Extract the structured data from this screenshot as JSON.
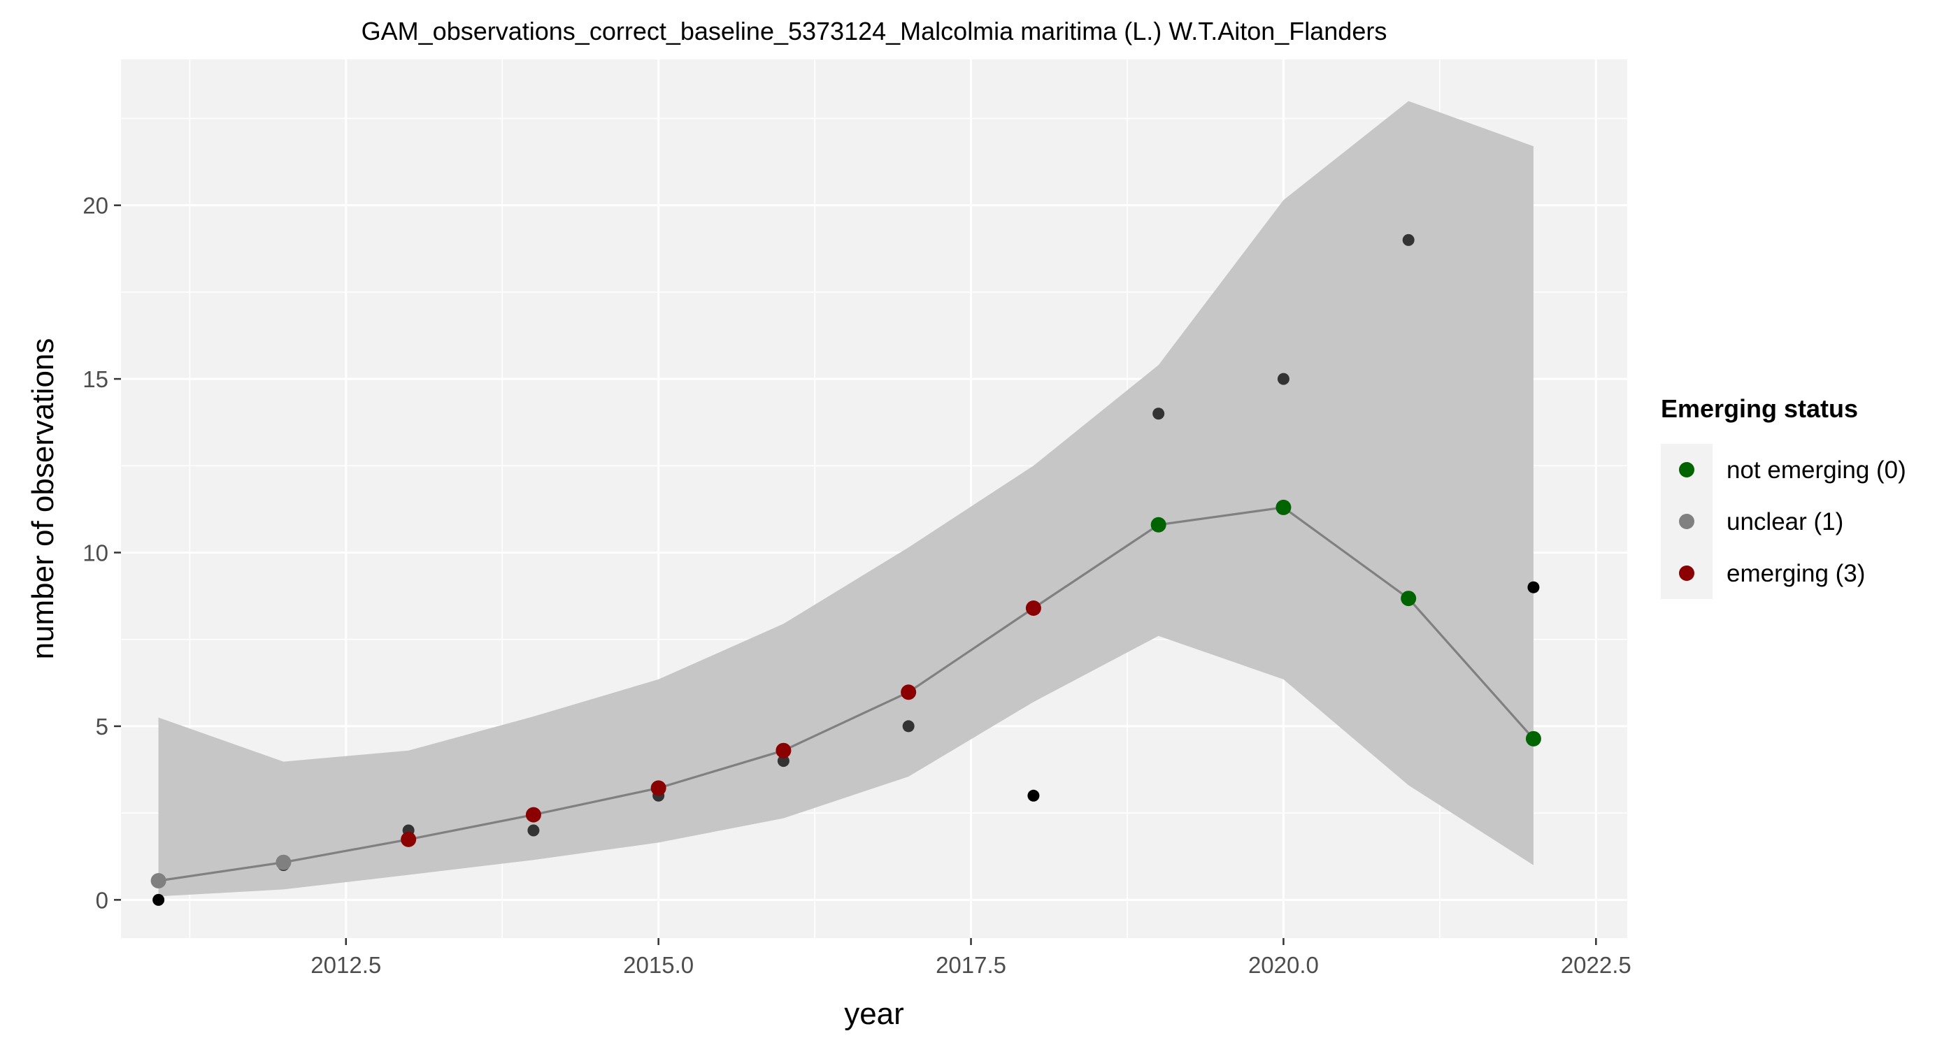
{
  "chart_data": {
    "type": "line",
    "title": "GAM_observations_correct_baseline_5373124_Malcolmia maritima (L.) W.T.Aiton_Flanders",
    "xlabel": "year",
    "ylabel": "number of observations",
    "xlim": [
      2010.7,
      2022.75
    ],
    "ylim": [
      -1.1,
      24.2
    ],
    "x_ticks": [
      2012.5,
      2015.0,
      2017.5,
      2020.0,
      2022.5
    ],
    "x_tick_labels": [
      "2012.5",
      "2015.0",
      "2017.5",
      "2020.0",
      "2022.5"
    ],
    "y_ticks": [
      0,
      5,
      10,
      15,
      20
    ],
    "y_tick_labels": [
      "0",
      "5",
      "10",
      "15",
      "20"
    ],
    "grid": true,
    "legend_position": "right",
    "colors": {
      "panel_background": "#f2f2f2",
      "grid": "#ffffff",
      "ribbon": "#c6c6c6",
      "fit_line": "#808080",
      "observed_point": "#333333",
      "not_emerging": "#006400",
      "unclear": "#808080",
      "emerging": "#8b0000"
    },
    "observed": {
      "x": [
        2011,
        2012,
        2013,
        2014,
        2015,
        2016,
        2017,
        2018,
        2019,
        2020,
        2021,
        2022
      ],
      "y": [
        0,
        1,
        2,
        2,
        3,
        4,
        5,
        3,
        14,
        15,
        19,
        9
      ]
    },
    "fit": {
      "x": [
        2011,
        2012,
        2013,
        2014,
        2015,
        2016,
        2017,
        2018,
        2019,
        2020,
        2021,
        2022
      ],
      "y": [
        0.55,
        1.08,
        1.74,
        2.45,
        3.22,
        4.3,
        5.98,
        8.4,
        10.8,
        11.3,
        8.68,
        4.64
      ],
      "lower": [
        0.1,
        0.3,
        0.72,
        1.15,
        1.65,
        2.35,
        3.55,
        5.7,
        7.6,
        6.35,
        3.3,
        1.0
      ],
      "upper": [
        5.25,
        3.98,
        4.3,
        5.28,
        6.35,
        7.95,
        10.15,
        12.5,
        15.4,
        20.15,
        23.0,
        21.7
      ],
      "status": [
        1,
        1,
        3,
        3,
        3,
        3,
        3,
        3,
        0,
        0,
        0,
        0
      ]
    },
    "legend": {
      "title": "Emerging status",
      "entries": [
        {
          "code": 0,
          "label": "not emerging (0)",
          "color": "#006400"
        },
        {
          "code": 1,
          "label": "unclear (1)",
          "color": "#808080"
        },
        {
          "code": 3,
          "label": "emerging (3)",
          "color": "#8b0000"
        }
      ]
    }
  }
}
